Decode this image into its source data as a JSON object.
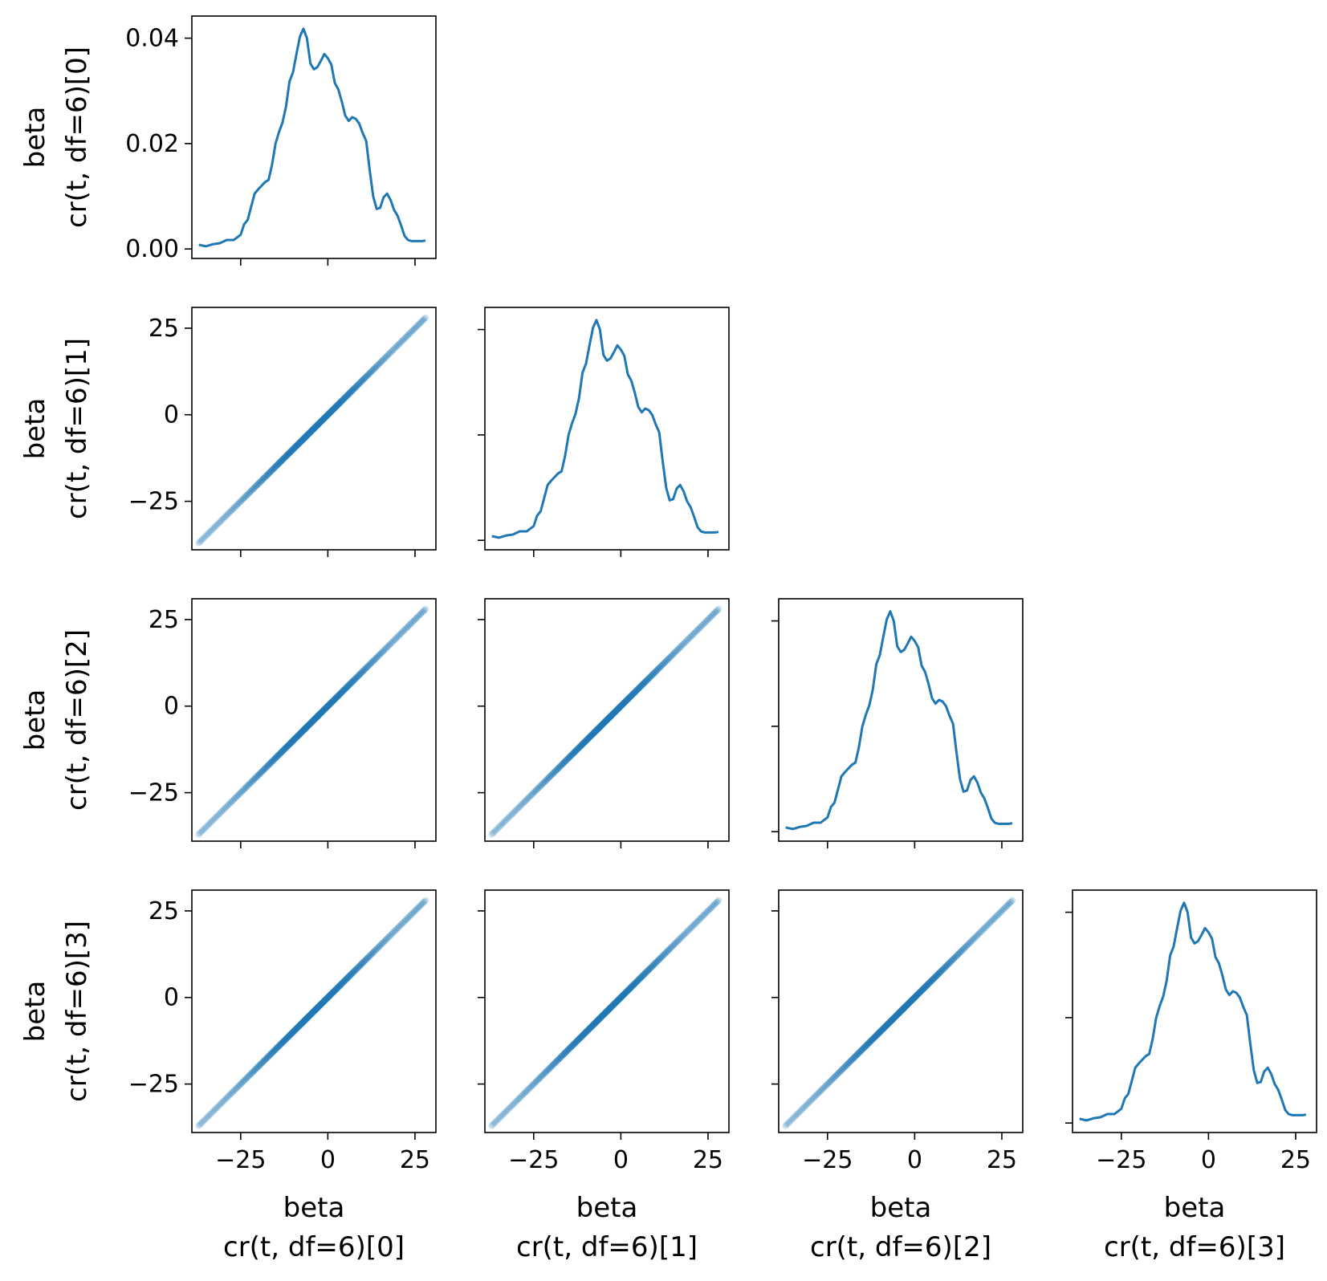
{
  "chart_data": {
    "type": "pairplot",
    "grid": "lower-triangle",
    "n_vars": 4,
    "colors": {
      "line": "#1f77b4",
      "point": "#1f77b4",
      "frame": "#000000"
    },
    "variables": [
      {
        "title": "beta",
        "subtitle": "cr(t, df=6)[0]"
      },
      {
        "title": "beta",
        "subtitle": "cr(t, df=6)[1]"
      },
      {
        "title": "beta",
        "subtitle": "cr(t, df=6)[2]"
      },
      {
        "title": "beta",
        "subtitle": "cr(t, df=6)[3]"
      }
    ],
    "x_axis": {
      "lim": [
        -39,
        31
      ],
      "ticks": [
        -25,
        0,
        25
      ],
      "tick_labels": [
        "−25",
        "0",
        "25"
      ]
    },
    "scatter_y_axis": {
      "lim": [
        -39,
        31
      ],
      "ticks": [
        -25,
        0,
        25
      ],
      "tick_labels": [
        "−25",
        "0",
        "25"
      ]
    },
    "density_y_axis": {
      "lim": [
        -0.0018,
        0.0442
      ],
      "ticks": [
        0.0,
        0.02,
        0.04
      ],
      "tick_labels": [
        "0.00",
        "0.02",
        "0.04"
      ]
    },
    "density_curve": {
      "x": [
        -37,
        -35,
        -33,
        -31,
        -29,
        -27,
        -25,
        -24,
        -23,
        -22,
        -21,
        -20,
        -19,
        -18,
        -17,
        -16,
        -15,
        -14,
        -13,
        -12,
        -11,
        -10,
        -9,
        -8,
        -7,
        -6,
        -5,
        -4,
        -3,
        -2,
        -1,
        0,
        1,
        2,
        3,
        4,
        5,
        6,
        7,
        8,
        9,
        10,
        11,
        12,
        13,
        14,
        15,
        16,
        17,
        18,
        19,
        20,
        21,
        22,
        23,
        24,
        25,
        26,
        27,
        28
      ],
      "y": [
        0.0008,
        0.0005,
        0.0009,
        0.0011,
        0.0017,
        0.0017,
        0.0027,
        0.0047,
        0.0055,
        0.008,
        0.0105,
        0.0113,
        0.012,
        0.0127,
        0.0131,
        0.016,
        0.02,
        0.0222,
        0.024,
        0.027,
        0.0318,
        0.0335,
        0.037,
        0.0403,
        0.0418,
        0.04,
        0.0352,
        0.0341,
        0.0345,
        0.0357,
        0.037,
        0.0362,
        0.035,
        0.0315,
        0.0303,
        0.028,
        0.0253,
        0.0243,
        0.025,
        0.0247,
        0.0238,
        0.022,
        0.0205,
        0.015,
        0.01,
        0.0076,
        0.0078,
        0.0098,
        0.0105,
        0.0093,
        0.0074,
        0.0063,
        0.0045,
        0.0025,
        0.0017,
        0.0015,
        0.0015,
        0.0015,
        0.0015,
        0.0016
      ]
    },
    "scatter": {
      "relation": "y = x",
      "x_range": [
        -37,
        28
      ],
      "n_points": 140
    }
  }
}
